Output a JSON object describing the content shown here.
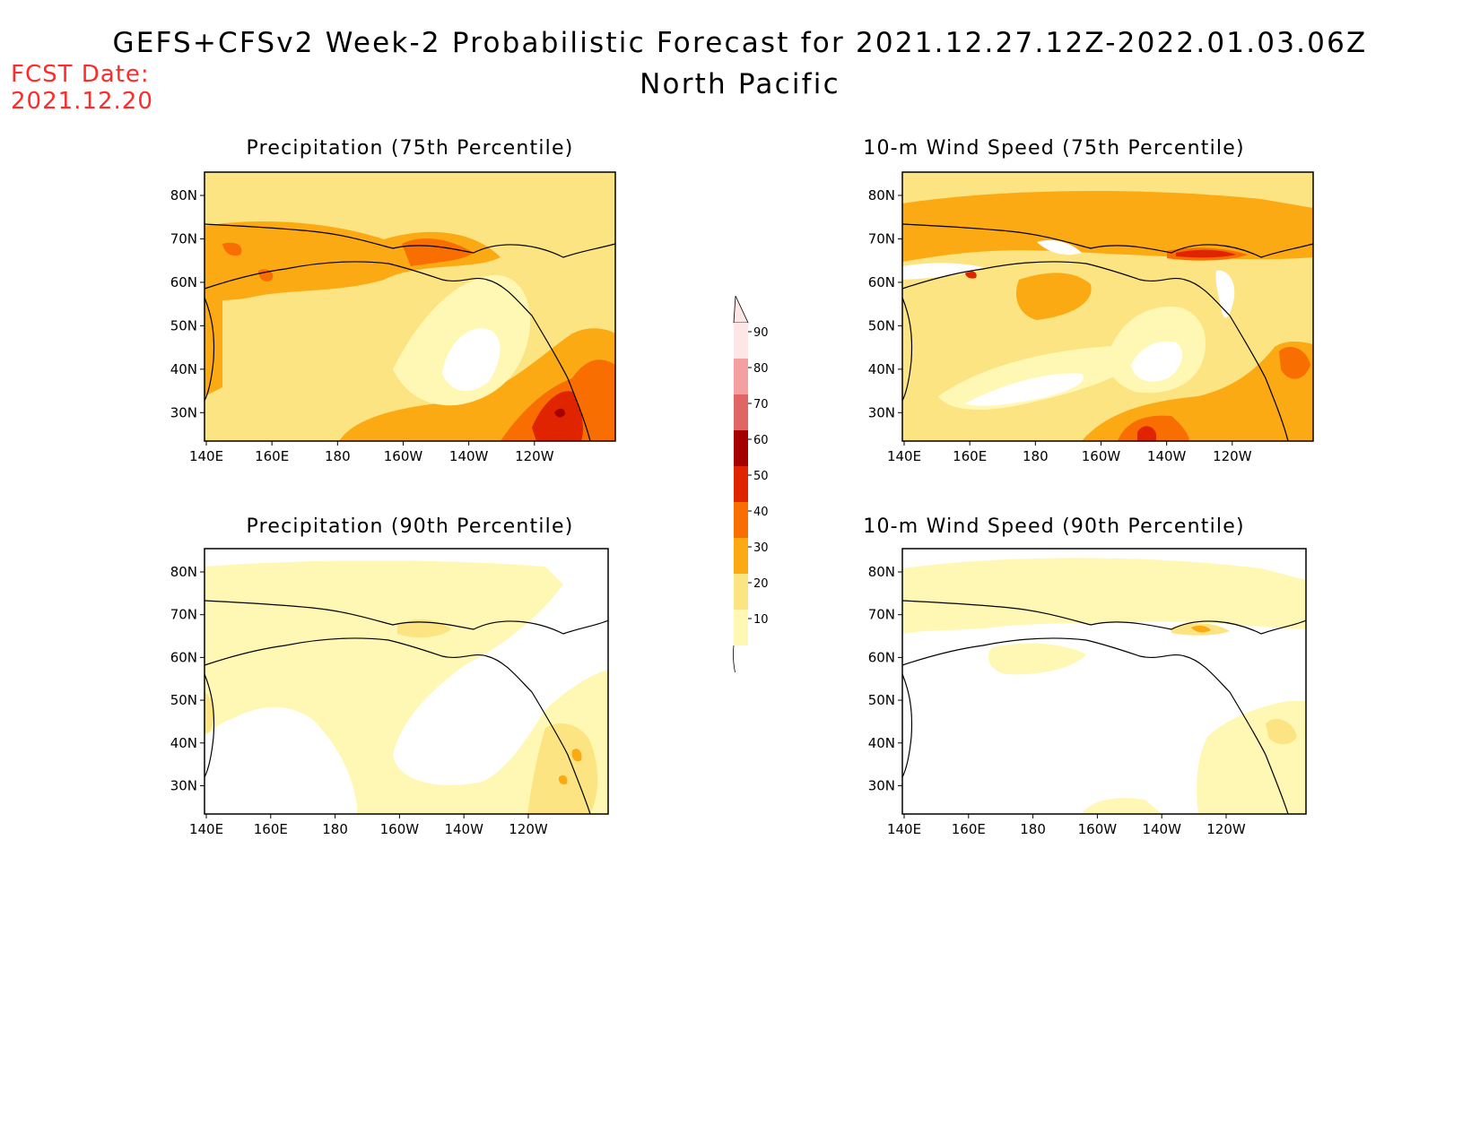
{
  "header": {
    "title": "GEFS+CFSv2 Week-2 Probabilistic Forecast for 2021.12.27.12Z-2022.01.03.06Z",
    "subtitle": "North Pacific",
    "fcst_label": "FCST Date:",
    "fcst_date": "2021.12.20"
  },
  "colors": {
    "c10": "#fff8b4",
    "c20": "#fde482",
    "c30": "#fbaa14",
    "c40": "#f96e00",
    "c50": "#e02400",
    "c60": "#a50000",
    "c70": "#e06666",
    "c80": "#f5a0a0",
    "c90": "#ffe6e6",
    "coast": "#000000",
    "date_red": "#ff2a2a"
  },
  "colorbar": {
    "levels": [
      "90",
      "80",
      "70",
      "60",
      "50",
      "40",
      "30",
      "20",
      "10"
    ]
  },
  "axes": {
    "lon_labels": [
      "140E",
      "160E",
      "180",
      "160W",
      "140W",
      "120W"
    ],
    "lat_labels": [
      "80N",
      "70N",
      "60N",
      "50N",
      "40N",
      "30N"
    ]
  },
  "panels": [
    {
      "title": "Precipitation (75th Percentile)"
    },
    {
      "title": "10-m Wind Speed (75th Percentile)"
    },
    {
      "title": "Precipitation (90th Percentile)"
    },
    {
      "title": "10-m Wind Speed (90th Percentile)"
    }
  ]
}
